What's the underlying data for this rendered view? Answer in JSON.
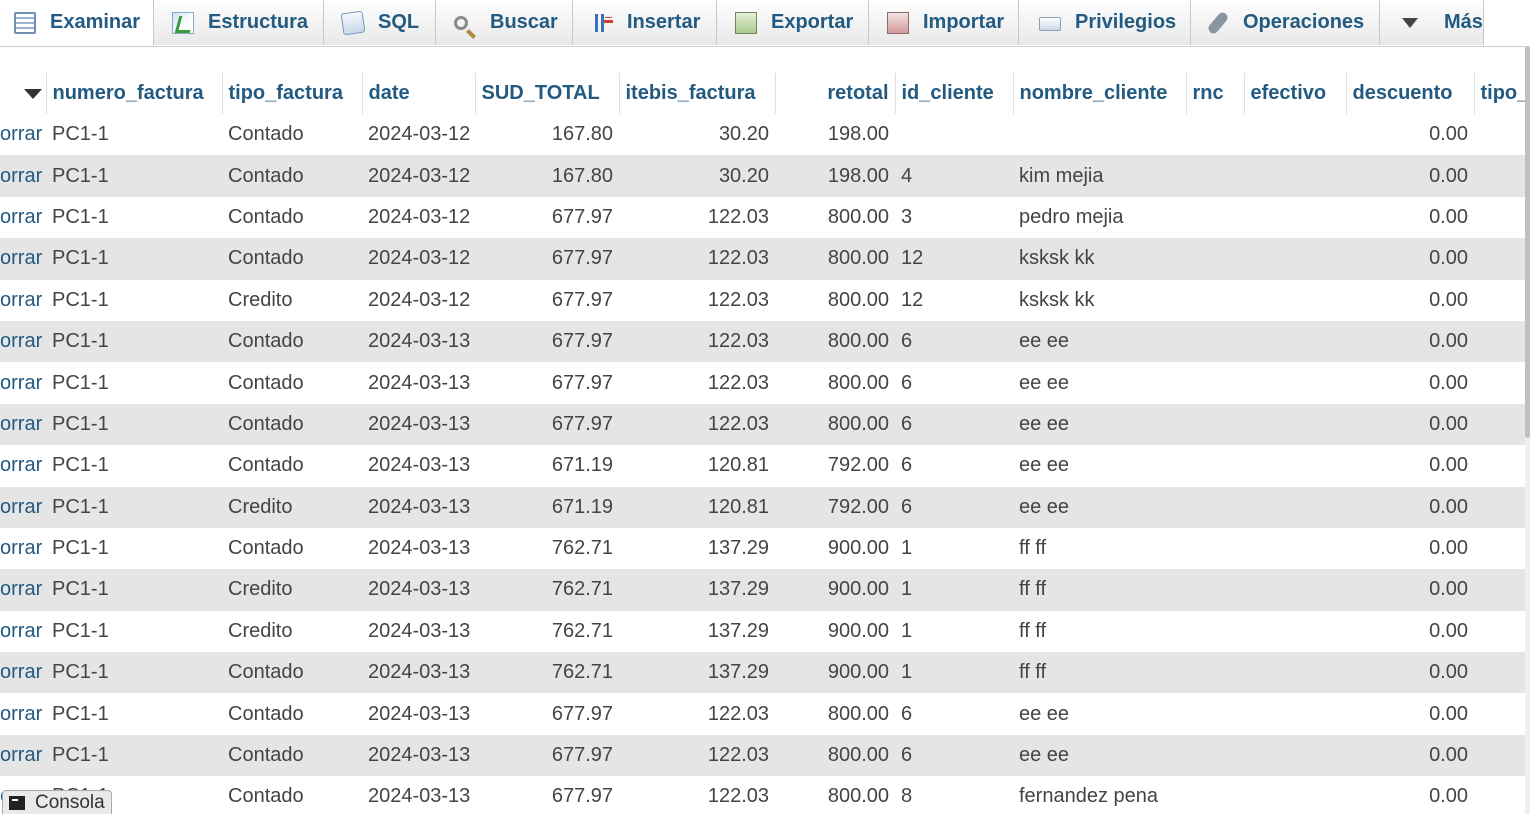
{
  "tabs": [
    {
      "label": "Examinar",
      "icon": "browse-icon",
      "active": true
    },
    {
      "label": "Estructura",
      "icon": "structure-icon"
    },
    {
      "label": "SQL",
      "icon": "sql-icon"
    },
    {
      "label": "Buscar",
      "icon": "search-icon"
    },
    {
      "label": "Insertar",
      "icon": "insert-icon"
    },
    {
      "label": "Exportar",
      "icon": "export-icon"
    },
    {
      "label": "Importar",
      "icon": "import-icon"
    },
    {
      "label": "Privilegios",
      "icon": "privileges-icon"
    },
    {
      "label": "Operaciones",
      "icon": "operations-icon"
    },
    {
      "label": "Más",
      "icon": "chevron-down-icon"
    }
  ],
  "table": {
    "columns": [
      "numero_factura",
      "tipo_factura",
      "date",
      "SUD_TOTAL",
      "itebis_factura",
      "retotal",
      "id_cliente",
      "nombre_cliente",
      "rnc",
      "efectivo",
      "descuento",
      "tipo_("
    ],
    "action_label": "orrar",
    "rows": [
      [
        "PC1-1",
        "Contado",
        "2024-03-12",
        "167.80",
        "30.20",
        "198.00",
        "",
        "",
        "",
        "",
        "0.00",
        ""
      ],
      [
        "PC1-1",
        "Contado",
        "2024-03-12",
        "167.80",
        "30.20",
        "198.00",
        "4",
        "kim mejia",
        "",
        "",
        "0.00",
        ""
      ],
      [
        "PC1-1",
        "Contado",
        "2024-03-12",
        "677.97",
        "122.03",
        "800.00",
        "3",
        "pedro mejia",
        "",
        "",
        "0.00",
        ""
      ],
      [
        "PC1-1",
        "Contado",
        "2024-03-12",
        "677.97",
        "122.03",
        "800.00",
        "12",
        "ksksk kk",
        "",
        "",
        "0.00",
        ""
      ],
      [
        "PC1-1",
        "Credito",
        "2024-03-12",
        "677.97",
        "122.03",
        "800.00",
        "12",
        "ksksk kk",
        "",
        "",
        "0.00",
        ""
      ],
      [
        "PC1-1",
        "Contado",
        "2024-03-13",
        "677.97",
        "122.03",
        "800.00",
        "6",
        "ee ee",
        "",
        "",
        "0.00",
        ""
      ],
      [
        "PC1-1",
        "Contado",
        "2024-03-13",
        "677.97",
        "122.03",
        "800.00",
        "6",
        "ee ee",
        "",
        "",
        "0.00",
        ""
      ],
      [
        "PC1-1",
        "Contado",
        "2024-03-13",
        "677.97",
        "122.03",
        "800.00",
        "6",
        "ee ee",
        "",
        "",
        "0.00",
        ""
      ],
      [
        "PC1-1",
        "Contado",
        "2024-03-13",
        "671.19",
        "120.81",
        "792.00",
        "6",
        "ee ee",
        "",
        "",
        "0.00",
        ""
      ],
      [
        "PC1-1",
        "Credito",
        "2024-03-13",
        "671.19",
        "120.81",
        "792.00",
        "6",
        "ee ee",
        "",
        "",
        "0.00",
        ""
      ],
      [
        "PC1-1",
        "Contado",
        "2024-03-13",
        "762.71",
        "137.29",
        "900.00",
        "1",
        "ff ff",
        "",
        "",
        "0.00",
        ""
      ],
      [
        "PC1-1",
        "Credito",
        "2024-03-13",
        "762.71",
        "137.29",
        "900.00",
        "1",
        "ff ff",
        "",
        "",
        "0.00",
        ""
      ],
      [
        "PC1-1",
        "Credito",
        "2024-03-13",
        "762.71",
        "137.29",
        "900.00",
        "1",
        "ff ff",
        "",
        "",
        "0.00",
        ""
      ],
      [
        "PC1-1",
        "Contado",
        "2024-03-13",
        "762.71",
        "137.29",
        "900.00",
        "1",
        "ff ff",
        "",
        "",
        "0.00",
        ""
      ],
      [
        "PC1-1",
        "Contado",
        "2024-03-13",
        "677.97",
        "122.03",
        "800.00",
        "6",
        "ee ee",
        "",
        "",
        "0.00",
        ""
      ],
      [
        "PC1-1",
        "Contado",
        "2024-03-13",
        "677.97",
        "122.03",
        "800.00",
        "6",
        "ee ee",
        "",
        "",
        "0.00",
        ""
      ],
      [
        "PC1-1",
        "Contado",
        "2024-03-13",
        "677.97",
        "122.03",
        "800.00",
        "8",
        "fernandez pena",
        "",
        "",
        "0.00",
        ""
      ]
    ]
  },
  "console": {
    "label": "Consola",
    "icon": "console-icon"
  },
  "colors": {
    "link": "#235a81",
    "row_alt": "#e5e5e5"
  }
}
